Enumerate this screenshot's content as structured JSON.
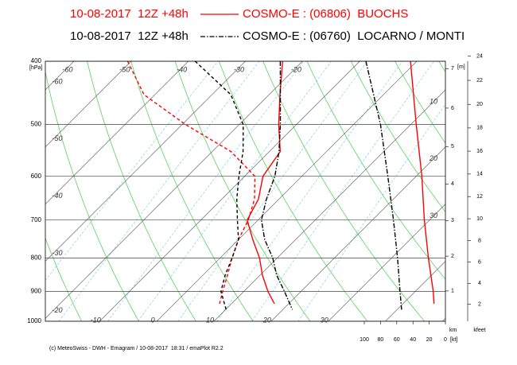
{
  "chart_data": {
    "type": "emagram",
    "legend": [
      {
        "run": "10-08-2017  12Z +48h",
        "model": "COSMO-E : (06806)  BUOCHS",
        "color": "#ff0000",
        "line_style": "solid"
      },
      {
        "run": "10-08-2017  12Z +48h",
        "model": "COSMO-E : (06760)  LOCARNO / MONTI",
        "color": "#000000",
        "line_style": "dashdot"
      }
    ],
    "y_scale": "log",
    "ylim": [
      1000,
      400
    ],
    "yticks": [
      400,
      500,
      600,
      700,
      800,
      900,
      1000
    ],
    "y_unit": "[hPa]",
    "xlim": [
      -19.5,
      50.5
    ],
    "isotherms": [
      -110,
      -100,
      -90,
      -80,
      -70,
      -60,
      -50,
      -40,
      -30,
      -20,
      -10,
      0,
      10,
      20,
      30,
      40,
      50
    ],
    "isotherm_labels": {
      "top": [
        -60,
        -50,
        -40,
        -30,
        -20
      ],
      "left": [
        -60,
        -50,
        -40,
        -30,
        -20
      ],
      "right": [
        10,
        20,
        30
      ],
      "bottom": [
        -10,
        0,
        10,
        20,
        30
      ]
    },
    "series": [
      {
        "variable": "temperature",
        "color": "#ff0000",
        "line_style": "solid",
        "values": [
          400,
          450,
          500,
          550,
          600,
          650,
          700,
          750,
          800,
          850,
          900,
          940
        ],
        "x": [
          -23.5,
          -18.1,
          -13.1,
          -8.1,
          -6.8,
          -3.6,
          -1.9,
          2.5,
          6.9,
          10.4,
          14.2,
          17.5
        ]
      },
      {
        "variable": "dewpoint",
        "color": "#ff0000",
        "line_style": "dashed",
        "values": [
          400,
          450,
          500,
          550,
          600,
          650,
          700,
          750,
          800,
          850,
          900,
          940
        ],
        "x": [
          -50.6,
          -41.9,
          -29.4,
          -16.7,
          -8.2,
          -4.3,
          -1.7,
          0,
          2.1,
          4.3,
          6.3,
          7.9
        ]
      },
      {
        "variable": "temperature",
        "color": "#000000",
        "line_style": "dashdot",
        "values": [
          400,
          500,
          550,
          600,
          650,
          700,
          750,
          800,
          850,
          900,
          960
        ],
        "x": [
          -23.9,
          -12.8,
          -8.3,
          -4.7,
          -2.2,
          0.6,
          4.6,
          9.2,
          12.9,
          17.1,
          21.7
        ]
      },
      {
        "variable": "dewpoint",
        "color": "#000000",
        "line_style": "dashed",
        "values": [
          400,
          450,
          500,
          550,
          600,
          650,
          700,
          750,
          800,
          850,
          900,
          960
        ],
        "x": [
          -38.8,
          -26.7,
          -19.3,
          -14.6,
          -11.0,
          -7.4,
          -3.6,
          0,
          2.1,
          3.9,
          6.0,
          10.1
        ]
      },
      {
        "variable": "wind_speed",
        "color": "#ff0000",
        "line_style": "solid",
        "values": [
          400,
          500,
          600,
          700,
          800,
          900,
          940
        ],
        "x": [
          43,
          36,
          29,
          26,
          21,
          15,
          14
        ]
      },
      {
        "variable": "wind_speed",
        "color": "#000000",
        "line_style": "dashdot",
        "values": [
          400,
          500,
          600,
          700,
          800,
          900,
          960
        ],
        "x": [
          98,
          80,
          71,
          64,
          59,
          56,
          54
        ]
      }
    ],
    "wind_xlim": [
      100,
      0
    ],
    "wind_ticks": [
      100,
      80,
      60,
      40,
      20,
      0
    ],
    "wind_unit": "[kt]",
    "km_ticks": [
      1,
      2,
      3,
      4,
      5,
      6,
      7
    ],
    "km_unit": "km",
    "m_label": "[m]",
    "kfeet_ticks": [
      2,
      4,
      6,
      8,
      10,
      12,
      14,
      16,
      18,
      20,
      22,
      24
    ],
    "kfeet_unit": "kfeet",
    "footer": "(c) MeteoSwiss - DWH - Emagram / 10-08-2017  18:31 / emaPlot R2.2"
  }
}
